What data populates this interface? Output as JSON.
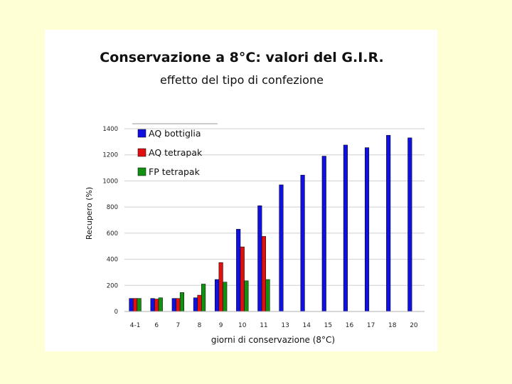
{
  "chart_data": {
    "type": "bar",
    "title": "Conservazione a 8°C: valori del G.I.R.",
    "subtitle": "effetto del tipo di confezione",
    "xlabel": "giorni di conservazione (8°C)",
    "ylabel": "Recupero (%)",
    "ylim": [
      0,
      1400
    ],
    "yticks": [
      0,
      200,
      400,
      600,
      800,
      1000,
      1200,
      1400
    ],
    "grid": true,
    "legend_position": "top-left",
    "categories": [
      "4-1",
      "6",
      "7",
      "8",
      "9",
      "10",
      "11",
      "13",
      "14",
      "15",
      "16",
      "17",
      "18",
      "20"
    ],
    "series": [
      {
        "name": "AQ bottiglia",
        "color": "#1010e0",
        "values": [
          100,
          100,
          100,
          105,
          245,
          630,
          810,
          970,
          1045,
          1190,
          1275,
          1255,
          1350,
          1330
        ]
      },
      {
        "name": "AQ tetrapak",
        "color": "#e01010",
        "values": [
          100,
          95,
          100,
          125,
          375,
          495,
          575,
          null,
          null,
          null,
          null,
          null,
          null,
          null
        ]
      },
      {
        "name": "FP tetrapak",
        "color": "#129012",
        "values": [
          100,
          105,
          145,
          210,
          225,
          235,
          245,
          null,
          null,
          null,
          null,
          null,
          null,
          null
        ]
      }
    ]
  }
}
